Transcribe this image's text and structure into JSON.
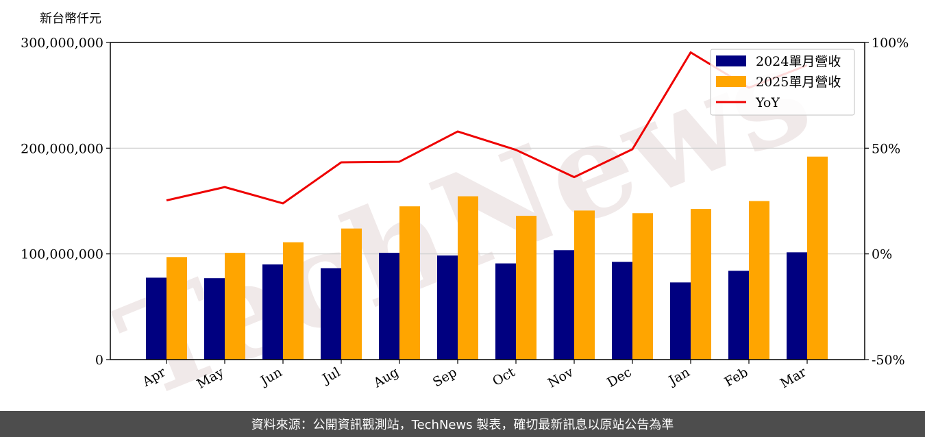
{
  "chart_data": {
    "type": "bar",
    "ylabel": "新台幣仟元",
    "categories": [
      "Apr",
      "May",
      "Jun",
      "Jul",
      "Aug",
      "Sep",
      "Oct",
      "Nov",
      "Dec",
      "Jan",
      "Feb",
      "Mar"
    ],
    "series": [
      {
        "name": "2024單月營收",
        "type": "bar",
        "color": "#000080",
        "values": [
          77500000,
          77000000,
          90000000,
          86500000,
          101000000,
          98500000,
          91000000,
          103500000,
          92500000,
          73000000,
          84000000,
          101500000
        ]
      },
      {
        "name": "2025單月營收",
        "type": "bar",
        "color": "#ffa500",
        "values": [
          97000000,
          101000000,
          111000000,
          124000000,
          145000000,
          154500000,
          136000000,
          141000000,
          138500000,
          142500000,
          150000000,
          192000000
        ]
      },
      {
        "name": "YoY",
        "type": "line",
        "axis": "right",
        "color": "#ee0000",
        "values": [
          25.3,
          31.6,
          23.9,
          43.3,
          43.6,
          57.9,
          49.2,
          36.3,
          49.5,
          95.3,
          78.6,
          89.2
        ]
      }
    ],
    "ylim": [
      0,
      300000000
    ],
    "yticks": [
      "0",
      "100,000,000",
      "200,000,000",
      "300,000,000"
    ],
    "y2lim": [
      -50,
      100
    ],
    "y2ticks": [
      "-50%",
      "0%",
      "50%",
      "100%"
    ],
    "grid": true,
    "legend_position": "top-right"
  },
  "watermark": "TechNews",
  "footer_text": "資料來源：公開資訊觀測站，TechNews 製表，確切最新訊息以原站公告為準"
}
